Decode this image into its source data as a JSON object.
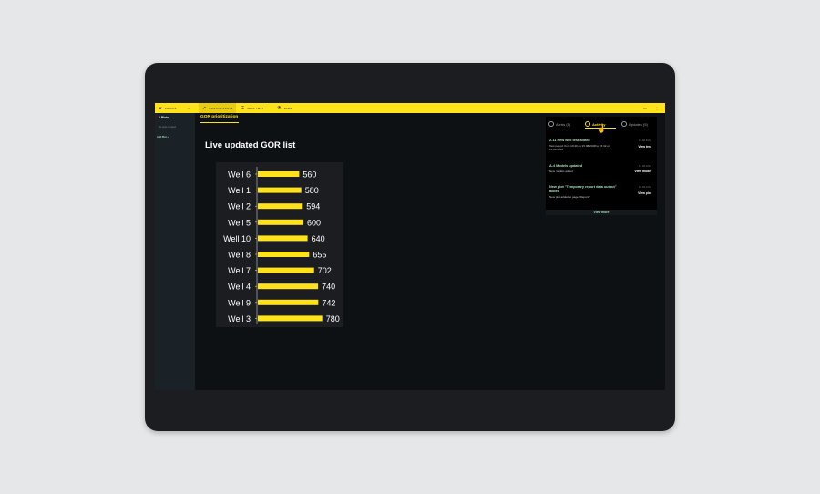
{
  "topbar": {
    "brand": "PROVIS",
    "tabs": [
      {
        "label": "CUSTOM PLOTS",
        "icon": "trend-icon"
      },
      {
        "label": "WELL TEST",
        "icon": "flask-icon"
      },
      {
        "label": "LABS",
        "icon": "beaker-icon"
      }
    ]
  },
  "sidebar": {
    "title": "0 Plots",
    "subtitle": "No plots created",
    "add_label": "Add Plot  +"
  },
  "main": {
    "tab_label": "GOR prioritization",
    "heading": "Live updated GOR list"
  },
  "chart_data": {
    "type": "bar",
    "orientation": "horizontal",
    "categories": [
      "Well 6",
      "Well 1",
      "Well 2",
      "Well 5",
      "Well 10",
      "Well 8",
      "Well 7",
      "Well 4",
      "Well 9",
      "Well 3"
    ],
    "values": [
      560,
      580,
      594,
      600,
      640,
      655,
      702,
      740,
      742,
      780
    ],
    "title": "",
    "bar_color": "#ffe21a",
    "background": "#1b1d21"
  },
  "panel": {
    "tabs": [
      {
        "label": "Alerts (5)"
      },
      {
        "label": "Activity"
      },
      {
        "label": "Updates (5)"
      }
    ],
    "items": [
      {
        "title": "2-11 New well test added",
        "desc": "Test period: from 10:40 on 15.08.2018 to 15:42 on 15.08.2018",
        "date": "15.08.2018",
        "link": "View test"
      },
      {
        "title": "A-4 Models updated",
        "desc": "New models added",
        "date": "13.08.2018",
        "link": "View model"
      },
      {
        "title": "New plot \"Temporary report data output\" added",
        "desc": "New plot added to page \"Reports\"",
        "date": "10.08.2018",
        "link": "View plot"
      }
    ],
    "view_more": "View more"
  },
  "colors": {
    "accent": "#ffe21a",
    "link": "#9ee3b6"
  }
}
